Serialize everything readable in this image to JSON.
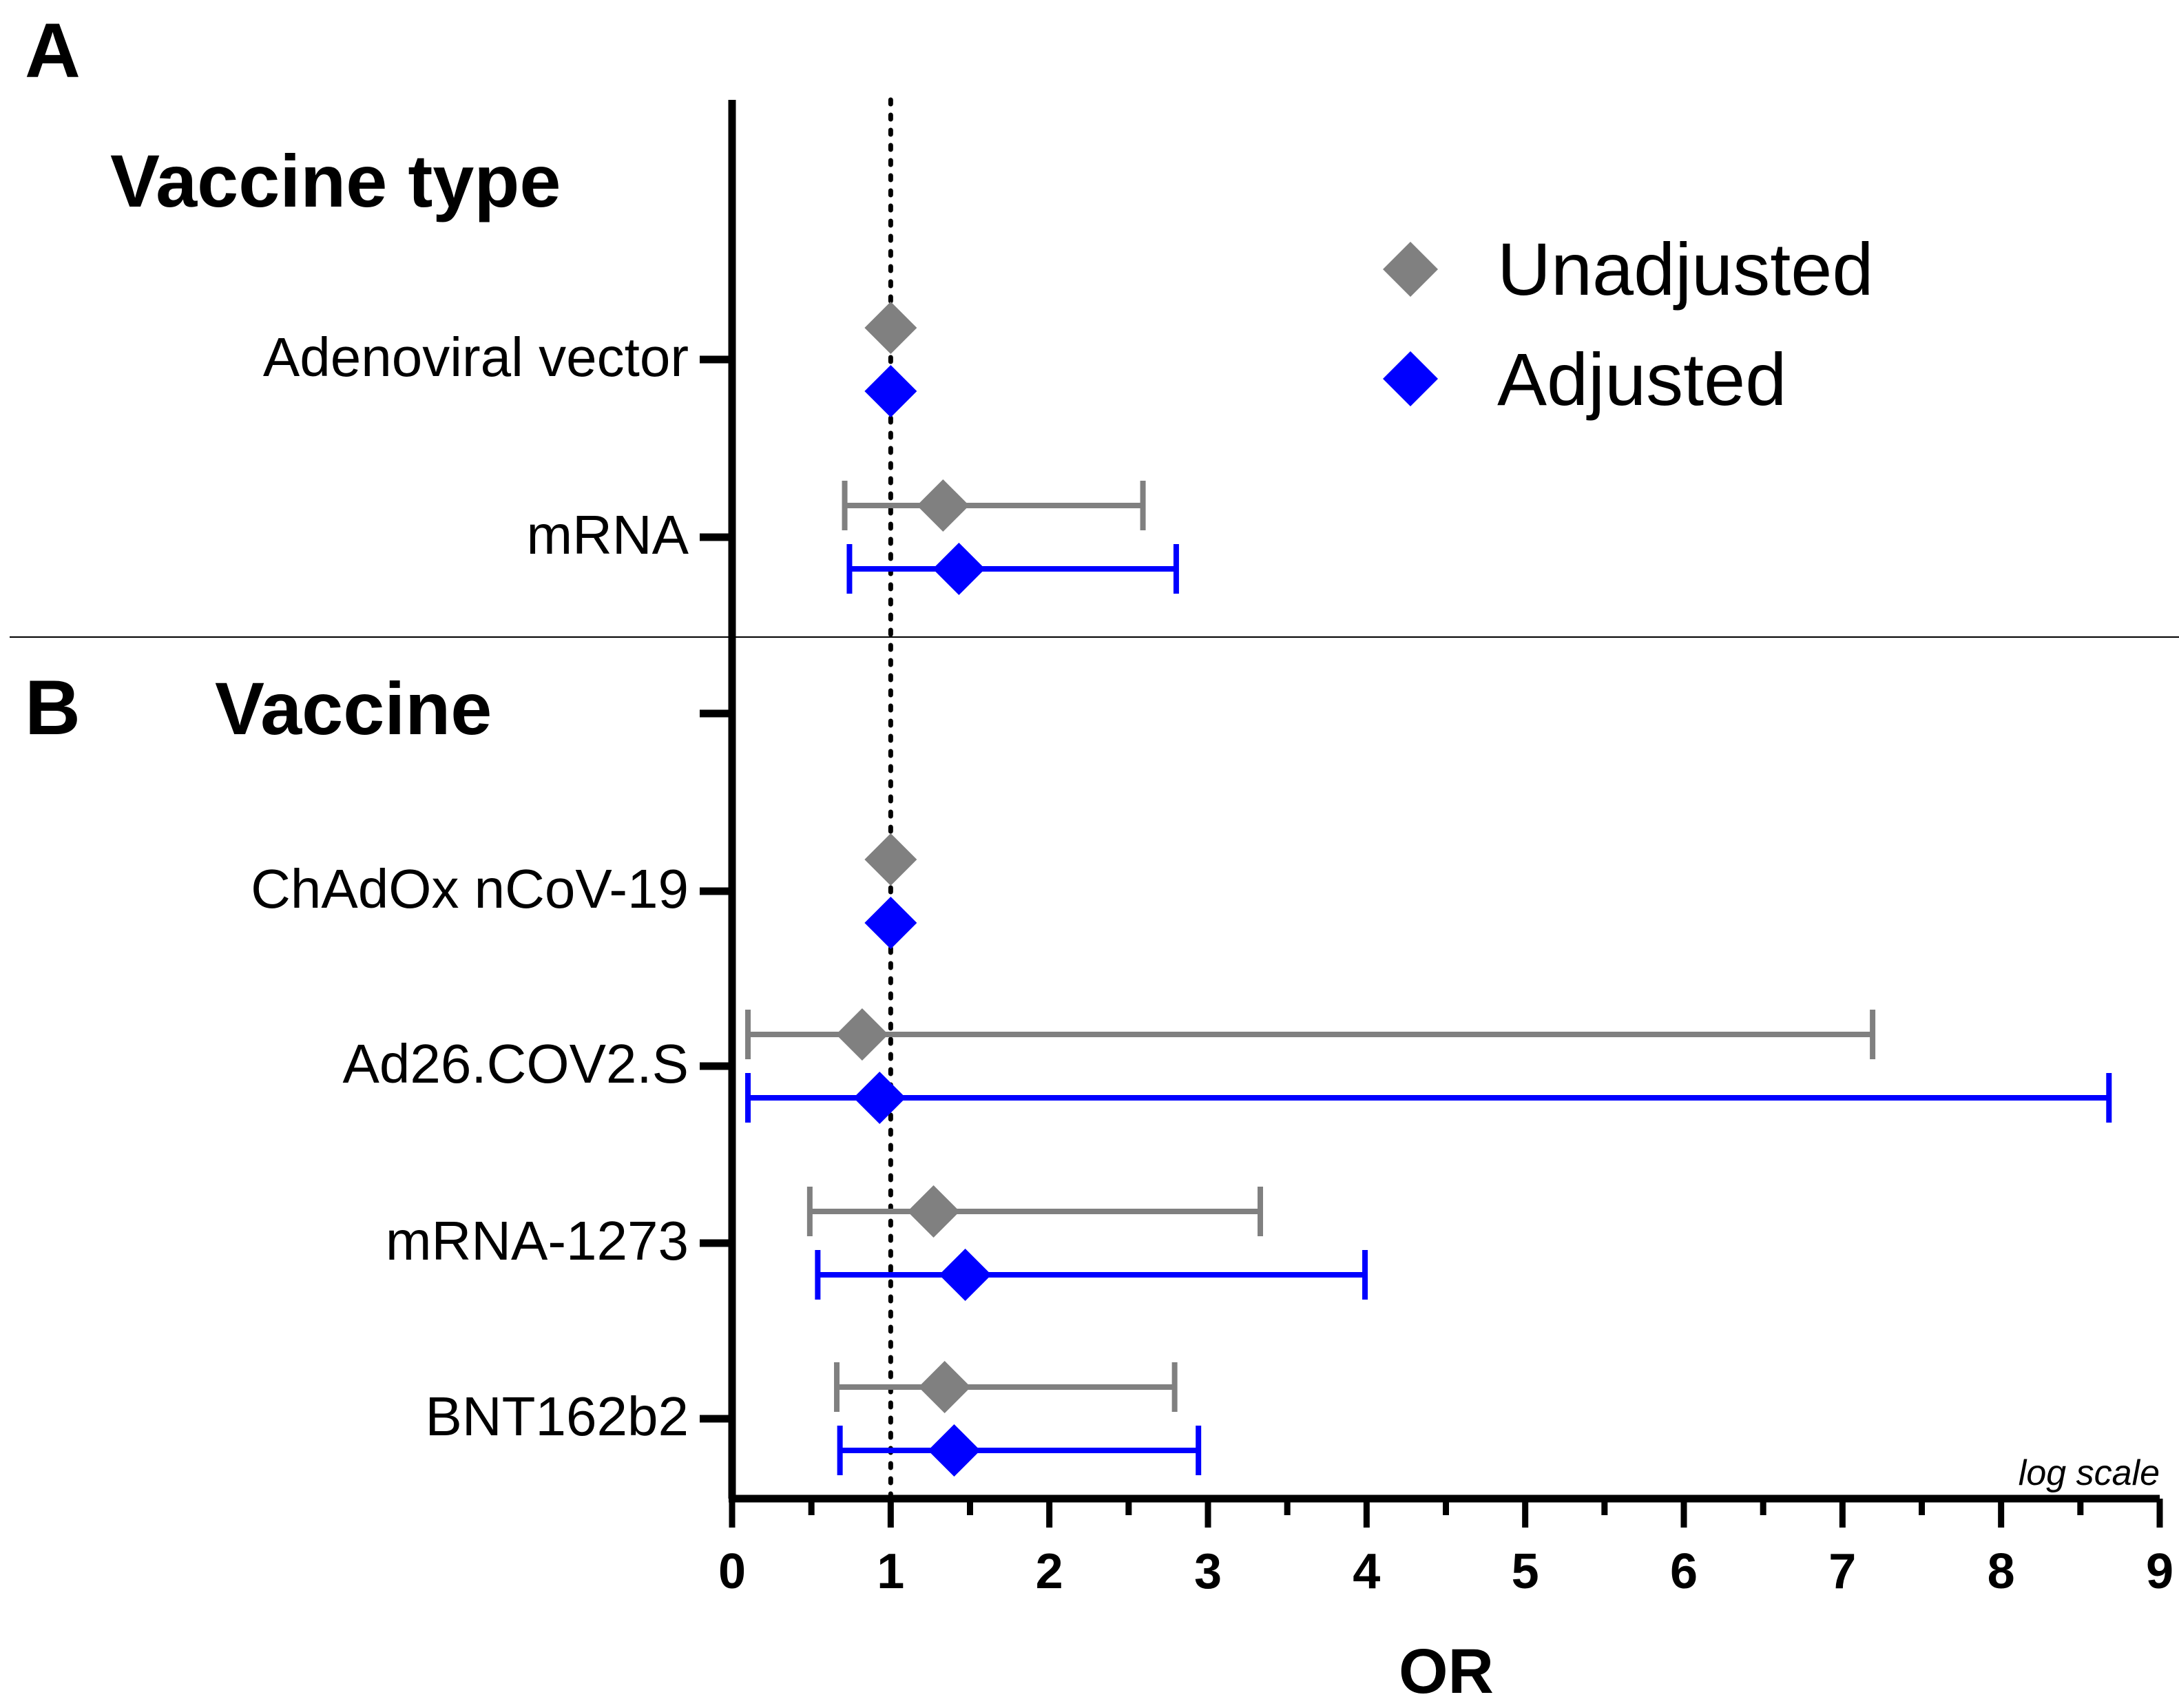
{
  "chart_data": {
    "type": "forest",
    "xlabel": "OR",
    "x_scale_note": "log scale",
    "xlim": [
      0,
      9
    ],
    "x_ticks": [
      0,
      1,
      2,
      3,
      4,
      5,
      6,
      7,
      8,
      9
    ],
    "x_minor_ticks": [
      0.5,
      1.5,
      2.5,
      3.5,
      4.5,
      5.5,
      6.5,
      7.5,
      8.5
    ],
    "reference_line": 1,
    "colors": {
      "unadjusted": "#808080",
      "adjusted": "#0000ff",
      "axis": "#000000"
    },
    "legend": [
      {
        "key": "unadjusted",
        "label": "Unadjusted"
      },
      {
        "key": "adjusted",
        "label": "Adjusted"
      }
    ],
    "panels": [
      {
        "letter": "A",
        "title": "Vaccine type",
        "rows": [
          {
            "label": "Adenoviral vector",
            "unadjusted": {
              "or": 1.0,
              "lo": null,
              "hi": null
            },
            "adjusted": {
              "or": 1.0,
              "lo": null,
              "hi": null
            }
          },
          {
            "label": "mRNA",
            "unadjusted": {
              "or": 1.33,
              "lo": 0.71,
              "hi": 2.59
            },
            "adjusted": {
              "or": 1.43,
              "lo": 0.74,
              "hi": 2.8
            }
          }
        ]
      },
      {
        "letter": "B",
        "title": "Vaccine",
        "rows": [
          {
            "label": "",
            "unadjusted": null,
            "adjusted": null
          },
          {
            "label": "ChAdOx nCoV-19",
            "unadjusted": {
              "or": 1.0,
              "lo": null,
              "hi": null
            },
            "adjusted": {
              "or": 1.0,
              "lo": null,
              "hi": null
            }
          },
          {
            "label": "Ad26.COV2.S",
            "unadjusted": {
              "or": 0.82,
              "lo": 0.1,
              "hi": 7.19
            },
            "adjusted": {
              "or": 0.93,
              "lo": 0.1,
              "hi": 8.68
            }
          },
          {
            "label": "mRNA-1273",
            "unadjusted": {
              "or": 1.27,
              "lo": 0.49,
              "hi": 3.33
            },
            "adjusted": {
              "or": 1.47,
              "lo": 0.54,
              "hi": 3.99
            }
          },
          {
            "label": "BNT162b2",
            "unadjusted": {
              "or": 1.34,
              "lo": 0.66,
              "hi": 2.79
            },
            "adjusted": {
              "or": 1.4,
              "lo": 0.68,
              "hi": 2.94
            }
          }
        ]
      }
    ]
  }
}
